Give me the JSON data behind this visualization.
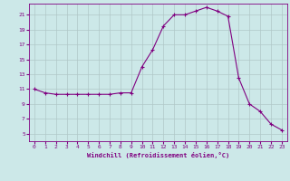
{
  "x": [
    0,
    1,
    2,
    3,
    4,
    5,
    6,
    7,
    8,
    9,
    10,
    11,
    12,
    13,
    14,
    15,
    16,
    17,
    18,
    19,
    20,
    21,
    22,
    23
  ],
  "y": [
    11.0,
    10.5,
    10.3,
    10.3,
    10.3,
    10.3,
    10.3,
    10.3,
    10.5,
    10.5,
    14.0,
    16.3,
    19.5,
    21.0,
    21.0,
    21.5,
    22.0,
    21.5,
    20.8,
    12.5,
    9.0,
    8.0,
    6.3,
    5.5
  ],
  "line_color": "#800080",
  "marker": "+",
  "bg_color": "#cce8e8",
  "grid_color": "#b0c8c8",
  "xlabel": "Windchill (Refroidissement éolien,°C)",
  "xlabel_color": "#800080",
  "tick_color": "#800080",
  "yticks": [
    5,
    7,
    9,
    11,
    13,
    15,
    17,
    19,
    21
  ],
  "xticks": [
    0,
    1,
    2,
    3,
    4,
    5,
    6,
    7,
    8,
    9,
    10,
    11,
    12,
    13,
    14,
    15,
    16,
    17,
    18,
    19,
    20,
    21,
    22,
    23
  ],
  "ylim": [
    4.0,
    22.5
  ],
  "xlim": [
    -0.5,
    23.5
  ],
  "figsize": [
    3.2,
    2.0
  ],
  "dpi": 100
}
